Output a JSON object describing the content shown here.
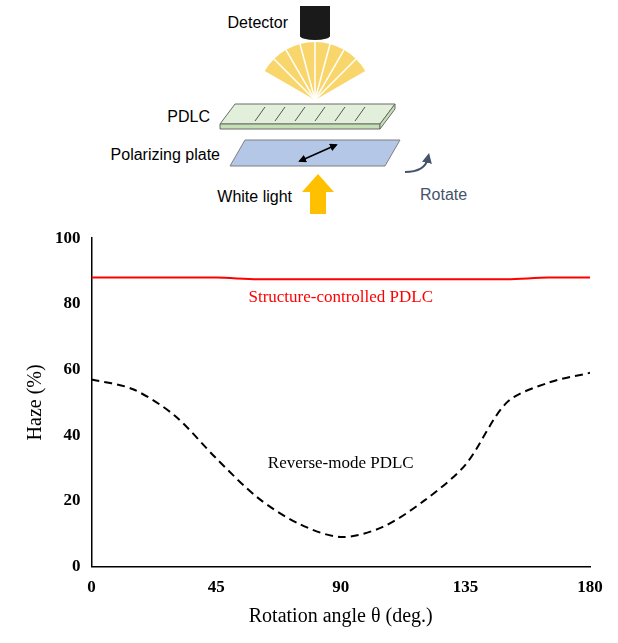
{
  "diagram": {
    "detector": "Detector",
    "sample": "PDLC",
    "polarizer": "Polarizing plate",
    "source": "White light",
    "rotation": "Rotate"
  },
  "chart_data": {
    "type": "line",
    "x_label": "Rotation angle θ (deg.)",
    "y_label": "Haze (%)",
    "x": [
      0,
      15,
      30,
      45,
      60,
      75,
      90,
      105,
      120,
      135,
      150,
      165,
      180
    ],
    "xlim": [
      0,
      180
    ],
    "xticks": [
      0,
      45,
      90,
      135,
      180
    ],
    "ylim": [
      0,
      100
    ],
    "yticks": [
      0,
      20,
      40,
      60,
      80,
      100
    ],
    "grid": false,
    "series": [
      {
        "name": "Structure-controlled PDLC",
        "color": "#ff0000",
        "line_style": "solid",
        "values": [
          88,
          88,
          88,
          88,
          87.5,
          87.5,
          87.5,
          87.5,
          87.5,
          87.5,
          87.5,
          88,
          88
        ]
      },
      {
        "name": "Reverse-mode PDLC",
        "color": "#000000",
        "line_style": "dashed",
        "values": [
          57,
          54,
          46,
          33,
          21,
          13,
          9,
          12,
          20,
          31,
          50,
          56,
          59
        ]
      }
    ]
  }
}
